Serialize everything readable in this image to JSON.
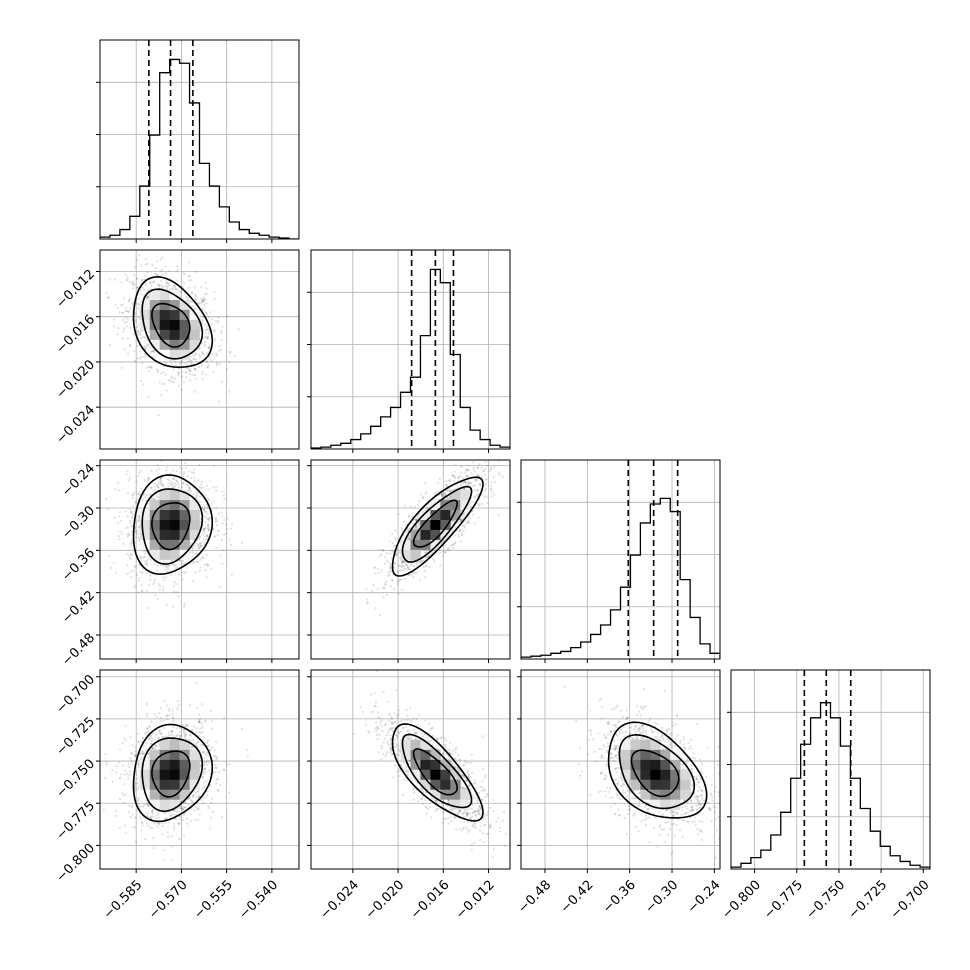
{
  "chart_data": {
    "type": "corner",
    "params": [
      {
        "name": "",
        "ticks": [
          "−0.585",
          "−0.570",
          "−0.555",
          "−0.540"
        ],
        "tick_values": [
          -0.585,
          -0.57,
          -0.555,
          -0.54
        ],
        "range": [
          -0.597,
          -0.531
        ],
        "quantiles": [
          -0.5808,
          -0.5736,
          -0.5662
        ],
        "mean": -0.5735,
        "sd": 0.0062
      },
      {
        "name": "",
        "ticks": [
          "−0.012",
          "−0.016",
          "−0.020",
          "−0.024"
        ],
        "tick_values": [
          -0.012,
          -0.016,
          -0.02,
          -0.024
        ],
        "range": [
          -0.0277,
          -0.0101
        ],
        "quantiles": [
          -0.0188,
          -0.0167,
          -0.0151
        ],
        "mean": -0.0167,
        "sd": 0.0019
      },
      {
        "name": "",
        "ticks": [
          "−0.24",
          "−0.30",
          "−0.36",
          "−0.42",
          "−0.48"
        ],
        "tick_values": [
          -0.24,
          -0.3,
          -0.36,
          -0.42,
          -0.48
        ],
        "range": [
          -0.514,
          -0.232
        ],
        "quantiles": [
          -0.362,
          -0.326,
          -0.292
        ],
        "mean": -0.324,
        "sd": 0.033
      },
      {
        "name": "",
        "ticks": [
          "−0.800",
          "−0.775",
          "−0.750",
          "−0.725",
          "−0.700"
        ],
        "tick_values": [
          -0.8,
          -0.775,
          -0.75,
          -0.725,
          -0.7
        ],
        "range": [
          -0.814,
          -0.696
        ],
        "quantiles": [
          -0.7705,
          -0.7575,
          -0.743
        ],
        "mean": -0.757,
        "sd": 0.0135
      }
    ],
    "histograms": [
      [
        1,
        2,
        5,
        12,
        28,
        55,
        88,
        95,
        93,
        72,
        40,
        28,
        17,
        9,
        5,
        3,
        2,
        1,
        0.5,
        0
      ],
      [
        0.5,
        1,
        2,
        3,
        5,
        8,
        12,
        17,
        22,
        30,
        38,
        60,
        95,
        88,
        50,
        22,
        10,
        5,
        2,
        1
      ],
      [
        1,
        1.5,
        2,
        3,
        4,
        6,
        9,
        13,
        18,
        26,
        38,
        55,
        72,
        82,
        85,
        78,
        42,
        22,
        8,
        3
      ],
      [
        1,
        3,
        6,
        10,
        18,
        30,
        48,
        66,
        80,
        88,
        80,
        65,
        48,
        32,
        20,
        12,
        7,
        4,
        2,
        1
      ]
    ],
    "correlations": {
      "1-0": -0.3,
      "2-0": 0.1,
      "2-1": 0.82,
      "3-0": 0.15,
      "3-1": -0.75,
      "3-2": -0.4
    },
    "hist_ylim": [
      0,
      100
    ],
    "grid": true
  }
}
